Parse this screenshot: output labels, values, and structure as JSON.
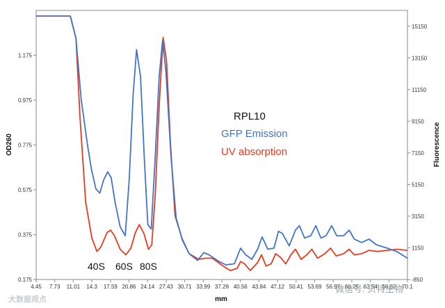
{
  "chart_data": {
    "type": "line",
    "xlabel": "mm",
    "ylabel_left": "OD260",
    "ylabel_right": "Fluorescence",
    "x_ticks": [
      "4.45",
      "7.73",
      "11.01",
      "14.3",
      "17.59",
      "20.86",
      "24.14",
      "27.43",
      "30.71",
      "33.99",
      "37.28",
      "40.56",
      "43.84",
      "47.12",
      "50.41",
      "53.69",
      "56.97",
      "60.25",
      "63.54",
      "66.82",
      "70.1"
    ],
    "xlim": [
      4.45,
      70.1
    ],
    "ylim_left": [
      0.175,
      1.375
    ],
    "y_ticks_left": [
      "0.175",
      "0.375",
      "0.575",
      "0.775",
      "0.975",
      "1.175"
    ],
    "ylim_right": [
      -850,
      16150
    ],
    "y_ticks_right": [
      "-850",
      "1150",
      "3150",
      "5150",
      "7150",
      "9150",
      "11150",
      "13150",
      "15150"
    ],
    "annotations": [
      "RPL10",
      "GFP Emission",
      "UV absorption"
    ],
    "peak_labels": [
      "40S",
      "60S",
      "80S"
    ],
    "colors": {
      "uv": "#e63a1e",
      "gfp": "#3f74c9"
    },
    "series": [
      {
        "name": "UV absorption",
        "axis": "left",
        "points": [
          [
            4.45,
            1.35
          ],
          [
            5.0,
            1.35
          ],
          [
            7.0,
            1.35
          ],
          [
            10.5,
            1.35
          ],
          [
            11.5,
            1.25
          ],
          [
            12.2,
            0.9
          ],
          [
            13.2,
            0.52
          ],
          [
            14.3,
            0.36
          ],
          [
            15.2,
            0.3
          ],
          [
            15.9,
            0.32
          ],
          [
            17.0,
            0.385
          ],
          [
            17.6,
            0.395
          ],
          [
            18.3,
            0.37
          ],
          [
            19.3,
            0.31
          ],
          [
            20.3,
            0.285
          ],
          [
            21.2,
            0.315
          ],
          [
            22.0,
            0.385
          ],
          [
            22.7,
            0.42
          ],
          [
            23.5,
            0.38
          ],
          [
            24.3,
            0.31
          ],
          [
            24.9,
            0.33
          ],
          [
            25.5,
            0.55
          ],
          [
            26.2,
            0.95
          ],
          [
            26.9,
            1.255
          ],
          [
            27.5,
            1.15
          ],
          [
            28.2,
            0.78
          ],
          [
            29.0,
            0.46
          ],
          [
            30.2,
            0.36
          ],
          [
            31.5,
            0.29
          ],
          [
            33.2,
            0.265
          ],
          [
            34.4,
            0.27
          ],
          [
            35.6,
            0.27
          ],
          [
            37.5,
            0.235
          ],
          [
            38.8,
            0.215
          ],
          [
            40.0,
            0.225
          ],
          [
            40.6,
            0.255
          ],
          [
            41.3,
            0.245
          ],
          [
            42.3,
            0.215
          ],
          [
            43.6,
            0.25
          ],
          [
            44.3,
            0.285
          ],
          [
            45.1,
            0.235
          ],
          [
            46.0,
            0.245
          ],
          [
            46.8,
            0.29
          ],
          [
            47.6,
            0.275
          ],
          [
            48.6,
            0.245
          ],
          [
            49.5,
            0.285
          ],
          [
            50.3,
            0.31
          ],
          [
            51.3,
            0.265
          ],
          [
            52.3,
            0.285
          ],
          [
            53.2,
            0.31
          ],
          [
            54.2,
            0.27
          ],
          [
            55.5,
            0.29
          ],
          [
            56.5,
            0.315
          ],
          [
            57.5,
            0.28
          ],
          [
            58.8,
            0.29
          ],
          [
            59.8,
            0.31
          ],
          [
            60.7,
            0.285
          ],
          [
            62.0,
            0.29
          ],
          [
            63.3,
            0.305
          ],
          [
            64.8,
            0.3
          ],
          [
            66.5,
            0.305
          ],
          [
            68.2,
            0.31
          ],
          [
            70.1,
            0.305
          ]
        ]
      },
      {
        "name": "GFP Emission",
        "axis": "left",
        "points": [
          [
            4.45,
            1.35
          ],
          [
            5.0,
            1.35
          ],
          [
            7.0,
            1.35
          ],
          [
            10.5,
            1.35
          ],
          [
            11.5,
            1.25
          ],
          [
            12.4,
            0.98
          ],
          [
            13.5,
            0.78
          ],
          [
            14.2,
            0.67
          ],
          [
            15.0,
            0.58
          ],
          [
            15.7,
            0.56
          ],
          [
            16.4,
            0.62
          ],
          [
            17.1,
            0.655
          ],
          [
            17.7,
            0.63
          ],
          [
            18.4,
            0.52
          ],
          [
            19.3,
            0.41
          ],
          [
            20.2,
            0.37
          ],
          [
            20.9,
            0.62
          ],
          [
            21.6,
            1.0
          ],
          [
            22.2,
            1.2
          ],
          [
            22.9,
            1.08
          ],
          [
            23.6,
            0.7
          ],
          [
            24.2,
            0.42
          ],
          [
            24.8,
            0.4
          ],
          [
            25.5,
            0.72
          ],
          [
            26.2,
            1.08
          ],
          [
            26.8,
            1.24
          ],
          [
            27.4,
            1.1
          ],
          [
            28.3,
            0.72
          ],
          [
            29.2,
            0.45
          ],
          [
            30.3,
            0.35
          ],
          [
            31.5,
            0.29
          ],
          [
            33.0,
            0.26
          ],
          [
            34.1,
            0.295
          ],
          [
            35.0,
            0.285
          ],
          [
            36.8,
            0.255
          ],
          [
            38.0,
            0.24
          ],
          [
            39.5,
            0.245
          ],
          [
            40.6,
            0.315
          ],
          [
            41.5,
            0.285
          ],
          [
            42.6,
            0.265
          ],
          [
            43.6,
            0.31
          ],
          [
            44.4,
            0.365
          ],
          [
            45.4,
            0.31
          ],
          [
            46.5,
            0.315
          ],
          [
            47.3,
            0.39
          ],
          [
            48.0,
            0.38
          ],
          [
            49.2,
            0.325
          ],
          [
            50.3,
            0.395
          ],
          [
            51.0,
            0.415
          ],
          [
            51.9,
            0.36
          ],
          [
            53.0,
            0.37
          ],
          [
            53.9,
            0.415
          ],
          [
            54.8,
            0.36
          ],
          [
            55.7,
            0.37
          ],
          [
            56.7,
            0.415
          ],
          [
            57.6,
            0.37
          ],
          [
            58.8,
            0.37
          ],
          [
            59.8,
            0.395
          ],
          [
            60.7,
            0.355
          ],
          [
            62.0,
            0.34
          ],
          [
            63.3,
            0.355
          ],
          [
            64.6,
            0.33
          ],
          [
            66.5,
            0.315
          ],
          [
            68.2,
            0.3
          ],
          [
            70.1,
            0.27
          ]
        ]
      }
    ]
  },
  "watermarks": {
    "left": "大数据观点",
    "right": "微信号: 贝特生物"
  }
}
